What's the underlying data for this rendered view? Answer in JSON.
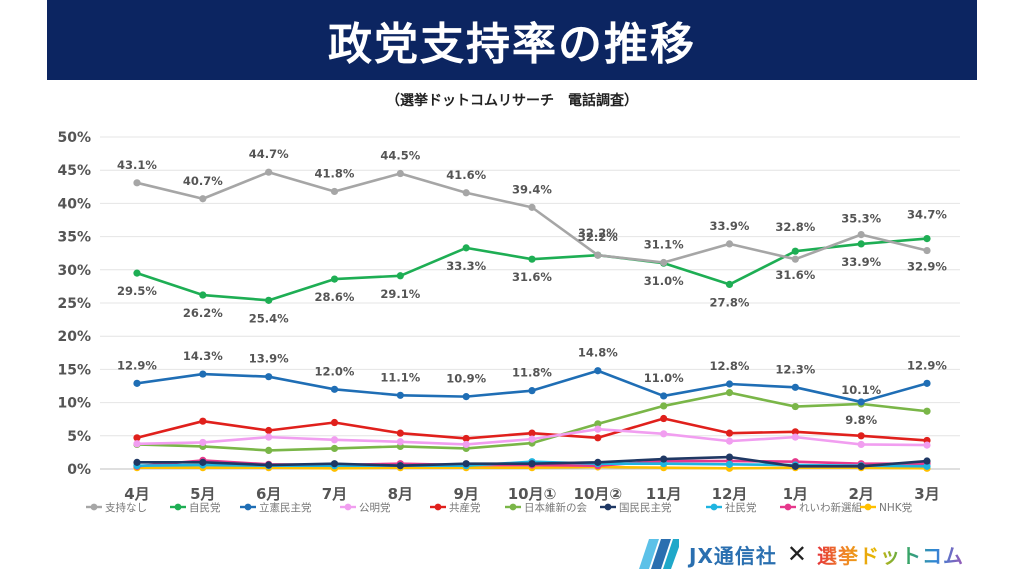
{
  "header": {
    "title": "政党支持率の推移",
    "subtitle": "（選挙ドットコムリサーチ　電話調査）"
  },
  "footer": {
    "jx_logo_text": "JX通信社",
    "cross": "✕",
    "senkyo_logo_text": "選挙ドットコム"
  },
  "chart_data": {
    "type": "line",
    "categories": [
      "4月",
      "5月",
      "6月",
      "7月",
      "8月",
      "9月",
      "10月①",
      "10月②",
      "11月",
      "12月",
      "1月",
      "2月",
      "3月"
    ],
    "ylim": [
      0,
      50
    ],
    "yticks": [
      0,
      5,
      10,
      15,
      20,
      25,
      30,
      35,
      40,
      45,
      50
    ],
    "ytick_labels": [
      "0%",
      "5%",
      "10%",
      "15%",
      "20%",
      "25%",
      "30%",
      "35%",
      "40%",
      "45%",
      "50%"
    ],
    "grid": true,
    "legend_position": "bottom",
    "series": [
      {
        "name": "支持なし",
        "color": "#a6a6a6",
        "values": [
          43.1,
          40.7,
          44.7,
          41.8,
          44.5,
          41.6,
          39.4,
          32.2,
          31.1,
          33.9,
          31.6,
          35.3,
          32.9
        ],
        "labels": [
          "43.1%",
          "40.7%",
          "44.7%",
          "41.8%",
          "44.5%",
          "41.6%",
          "39.4%",
          "32.2%",
          "31.1%",
          "33.9%",
          "31.6%",
          "35.3%",
          "32.9%"
        ]
      },
      {
        "name": "自民党",
        "color": "#1eae54",
        "values": [
          29.5,
          26.2,
          25.4,
          28.6,
          29.1,
          33.3,
          31.6,
          32.2,
          31.0,
          27.8,
          32.8,
          33.9,
          34.7
        ],
        "labels": [
          "29.5%",
          "26.2%",
          "25.4%",
          "28.6%",
          "29.1%",
          "33.3%",
          "31.6%",
          "32.2%",
          "31.0%",
          "27.8%",
          "32.8%",
          "33.9%",
          "34.7%"
        ]
      },
      {
        "name": "立憲民主党",
        "color": "#1f6eb5",
        "values": [
          12.9,
          14.3,
          13.9,
          12.0,
          11.1,
          10.9,
          11.8,
          14.8,
          11.0,
          12.8,
          12.3,
          10.1,
          12.9
        ],
        "labels": [
          "12.9%",
          "14.3%",
          "13.9%",
          "12.0%",
          "11.1%",
          "10.9%",
          "11.8%",
          "14.8%",
          "11.0%",
          "12.8%",
          "12.3%",
          "10.1%",
          "12.9%"
        ]
      },
      {
        "name": "公明党",
        "color": "#f19ef0",
        "values": [
          3.8,
          4.0,
          4.8,
          4.4,
          4.1,
          3.7,
          4.5,
          6.0,
          5.3,
          4.2,
          4.8,
          3.7,
          3.6
        ],
        "labels": []
      },
      {
        "name": "共産党",
        "color": "#e0201c",
        "values": [
          4.7,
          7.2,
          5.8,
          7.0,
          5.4,
          4.6,
          5.4,
          4.7,
          7.6,
          5.4,
          5.6,
          5.0,
          4.3
        ],
        "labels": []
      },
      {
        "name": "日本維新の会",
        "color": "#7ab648",
        "values": [
          3.7,
          3.4,
          2.8,
          3.1,
          3.4,
          3.1,
          3.9,
          6.8,
          9.5,
          11.5,
          9.4,
          9.8,
          8.7
        ],
        "labels": [
          "",
          "",
          "",
          "",
          "",
          "",
          "",
          "",
          "",
          "",
          "",
          "9.8%",
          ""
        ]
      },
      {
        "name": "国民民主党",
        "color": "#1f3864",
        "values": [
          1.0,
          1.0,
          0.6,
          0.8,
          0.5,
          0.8,
          0.8,
          1.0,
          1.5,
          1.8,
          0.4,
          0.4,
          1.2
        ],
        "labels": []
      },
      {
        "name": "社民党",
        "color": "#1fb4e0",
        "values": [
          0.5,
          0.6,
          0.5,
          0.5,
          0.5,
          0.5,
          1.1,
          0.8,
          0.8,
          0.7,
          0.6,
          0.5,
          0.4
        ],
        "labels": []
      },
      {
        "name": "れいわ新選組",
        "color": "#e6388c",
        "values": [
          0.4,
          1.3,
          0.7,
          0.6,
          0.8,
          0.6,
          0.6,
          0.5,
          1.2,
          1.2,
          1.1,
          0.8,
          0.8
        ],
        "labels": []
      },
      {
        "name": "NHK党",
        "color": "#ffc000",
        "values": [
          0.2,
          0.2,
          0.2,
          0.1,
          0.2,
          0.2,
          0.2,
          0.3,
          0.2,
          0.1,
          0.2,
          0.2,
          0.1
        ],
        "labels": []
      }
    ]
  }
}
